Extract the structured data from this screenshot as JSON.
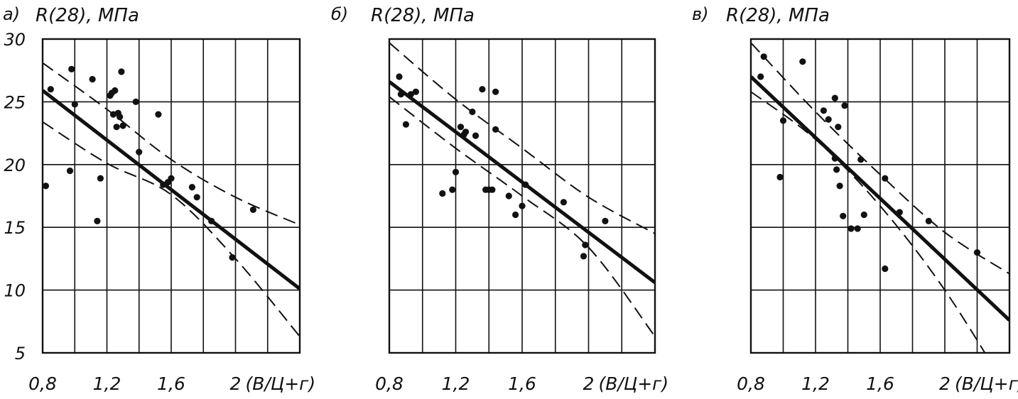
{
  "chart_data": [
    {
      "type": "scatter",
      "panel": "а)",
      "ylabel": "R(28), МПа",
      "xlabel": "(В/Ц+г)",
      "x_ticks": [
        "0,8",
        "1,2",
        "1,6",
        "2"
      ],
      "y_ticks": [
        "5",
        "10",
        "15",
        "20",
        "25",
        "30"
      ],
      "xlim": [
        0.8,
        2.4
      ],
      "ylim": [
        5,
        30
      ],
      "grid": true,
      "regression": [
        [
          0.8,
          25.9
        ],
        [
          2.4,
          10.1
        ]
      ],
      "confidence_upper": [
        [
          0.8,
          28.1
        ],
        [
          1.2,
          24.4
        ],
        [
          1.6,
          20.4
        ],
        [
          2.0,
          17.4
        ],
        [
          2.4,
          15.2
        ]
      ],
      "confidence_lower": [
        [
          0.8,
          23.4
        ],
        [
          1.2,
          20.1
        ],
        [
          1.6,
          17.6
        ],
        [
          2.0,
          12.5
        ],
        [
          2.4,
          6.3
        ]
      ],
      "points": [
        [
          0.82,
          18.3
        ],
        [
          0.85,
          26.0
        ],
        [
          0.97,
          19.5
        ],
        [
          0.98,
          27.6
        ],
        [
          1.0,
          24.8
        ],
        [
          1.11,
          26.8
        ],
        [
          1.16,
          18.9
        ],
        [
          1.14,
          15.5
        ],
        [
          1.22,
          25.5
        ],
        [
          1.23,
          25.7
        ],
        [
          1.24,
          24.0
        ],
        [
          1.25,
          25.9
        ],
        [
          1.26,
          23.0
        ],
        [
          1.27,
          24.1
        ],
        [
          1.28,
          23.8
        ],
        [
          1.29,
          27.4
        ],
        [
          1.3,
          23.1
        ],
        [
          1.38,
          25.0
        ],
        [
          1.4,
          21.0
        ],
        [
          1.52,
          24.0
        ],
        [
          1.55,
          18.4
        ],
        [
          1.58,
          18.6
        ],
        [
          1.6,
          18.9
        ],
        [
          1.73,
          18.2
        ],
        [
          1.76,
          17.4
        ],
        [
          1.85,
          15.5
        ],
        [
          1.98,
          12.6
        ],
        [
          2.11,
          16.4
        ]
      ]
    },
    {
      "type": "scatter",
      "panel": "б)",
      "ylabel": "R(28), МПа",
      "xlabel": "(В/Ц+г)",
      "x_ticks": [
        "0,8",
        "1,2",
        "1,6",
        "2"
      ],
      "y_ticks": [],
      "xlim": [
        0.8,
        2.4
      ],
      "ylim": [
        5,
        30
      ],
      "grid": true,
      "regression": [
        [
          0.8,
          26.6
        ],
        [
          2.4,
          10.6
        ]
      ],
      "confidence_upper": [
        [
          0.8,
          29.7
        ],
        [
          1.2,
          25.2
        ],
        [
          1.6,
          21.3
        ],
        [
          2.0,
          17.4
        ],
        [
          2.4,
          14.5
        ]
      ],
      "confidence_lower": [
        [
          0.8,
          25.4
        ],
        [
          1.2,
          21.3
        ],
        [
          1.6,
          17.5
        ],
        [
          2.0,
          13.4
        ],
        [
          2.4,
          6.3
        ]
      ],
      "points": [
        [
          0.86,
          27.0
        ],
        [
          0.87,
          25.6
        ],
        [
          0.9,
          23.2
        ],
        [
          0.93,
          25.6
        ],
        [
          0.96,
          25.8
        ],
        [
          1.12,
          17.7
        ],
        [
          1.18,
          18.0
        ],
        [
          1.2,
          19.4
        ],
        [
          1.23,
          23.0
        ],
        [
          1.25,
          22.4
        ],
        [
          1.26,
          22.6
        ],
        [
          1.3,
          24.2
        ],
        [
          1.32,
          22.3
        ],
        [
          1.36,
          26.0
        ],
        [
          1.38,
          18.0
        ],
        [
          1.4,
          18.0
        ],
        [
          1.42,
          18.0
        ],
        [
          1.44,
          25.8
        ],
        [
          1.44,
          22.8
        ],
        [
          1.52,
          17.5
        ],
        [
          1.56,
          16.0
        ],
        [
          1.6,
          16.7
        ],
        [
          1.62,
          18.4
        ],
        [
          1.85,
          17.0
        ],
        [
          1.97,
          12.7
        ],
        [
          1.98,
          13.6
        ],
        [
          2.1,
          15.5
        ]
      ]
    },
    {
      "type": "scatter",
      "panel": "в)",
      "ylabel": "R(28), МПа",
      "xlabel": "(В/Ц+г)",
      "x_ticks": [
        "0,8",
        "1,2",
        "1,6",
        "2"
      ],
      "y_ticks": [],
      "xlim": [
        0.8,
        2.4
      ],
      "ylim": [
        5,
        30
      ],
      "grid": true,
      "regression": [
        [
          0.8,
          27.0
        ],
        [
          2.4,
          7.6
        ]
      ],
      "confidence_upper": [
        [
          0.8,
          29.7
        ],
        [
          1.2,
          24.2
        ],
        [
          1.6,
          19.2
        ],
        [
          2.0,
          14.6
        ],
        [
          2.4,
          11.3
        ]
      ],
      "confidence_lower": [
        [
          0.8,
          25.8
        ],
        [
          1.2,
          22.0
        ],
        [
          1.6,
          16.7
        ],
        [
          2.0,
          10.0
        ],
        [
          2.4,
          1.8
        ]
      ],
      "points": [
        [
          0.86,
          27.0
        ],
        [
          0.88,
          28.6
        ],
        [
          0.98,
          19.0
        ],
        [
          1.0,
          23.5
        ],
        [
          1.12,
          28.2
        ],
        [
          1.25,
          24.3
        ],
        [
          1.28,
          23.6
        ],
        [
          1.32,
          25.3
        ],
        [
          1.32,
          20.5
        ],
        [
          1.33,
          19.6
        ],
        [
          1.34,
          23.0
        ],
        [
          1.35,
          18.3
        ],
        [
          1.37,
          15.9
        ],
        [
          1.38,
          24.7
        ],
        [
          1.42,
          14.9
        ],
        [
          1.46,
          14.9
        ],
        [
          1.48,
          20.4
        ],
        [
          1.5,
          16.0
        ],
        [
          1.63,
          11.7
        ],
        [
          1.63,
          18.9
        ],
        [
          1.72,
          16.2
        ],
        [
          1.9,
          15.5
        ],
        [
          2.2,
          13.0
        ]
      ]
    }
  ]
}
